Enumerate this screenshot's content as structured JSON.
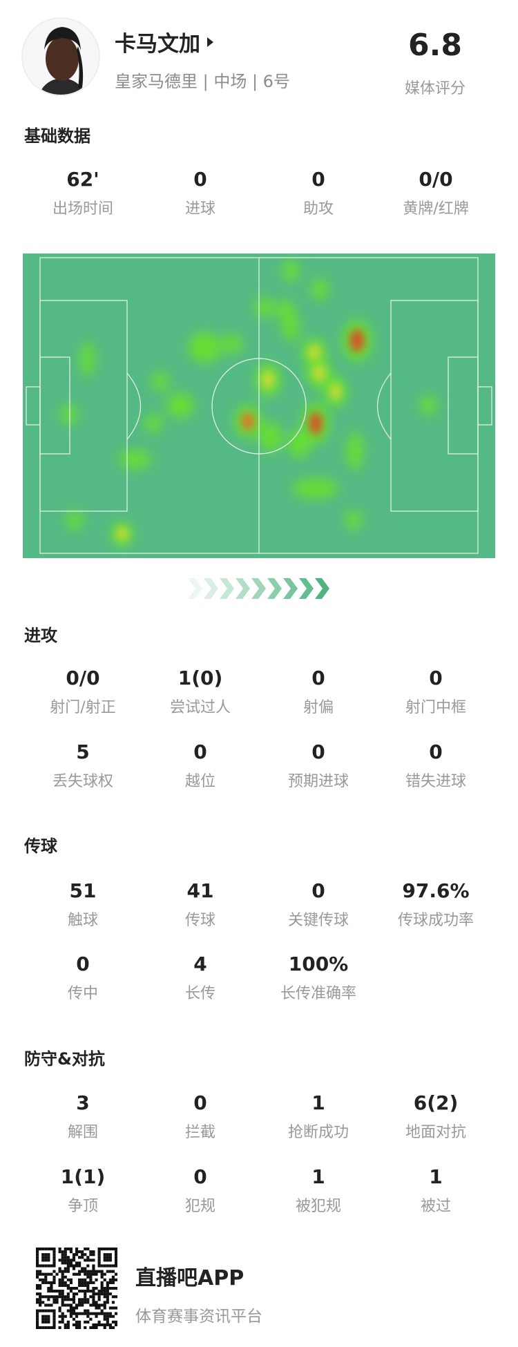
{
  "player": {
    "name": "卡马文加",
    "subtitle": "皇家马德里 | 中场 | 6号",
    "rating": "6.8",
    "rating_label": "媒体评分"
  },
  "sections": [
    {
      "title": "基础数据",
      "rows": [
        [
          {
            "value": "62'",
            "label": "出场时间"
          },
          {
            "value": "0",
            "label": "进球"
          },
          {
            "value": "0",
            "label": "助攻"
          },
          {
            "value": "0/0",
            "label": "黄牌/红牌"
          }
        ]
      ]
    },
    {
      "title": "进攻",
      "rows": [
        [
          {
            "value": "0/0",
            "label": "射门/射正"
          },
          {
            "value": "1(0)",
            "label": "尝试过人"
          },
          {
            "value": "0",
            "label": "射偏"
          },
          {
            "value": "0",
            "label": "射门中框"
          }
        ],
        [
          {
            "value": "5",
            "label": "丢失球权"
          },
          {
            "value": "0",
            "label": "越位"
          },
          {
            "value": "0",
            "label": "预期进球"
          },
          {
            "value": "0",
            "label": "错失进球"
          }
        ]
      ]
    },
    {
      "title": "传球",
      "rows": [
        [
          {
            "value": "51",
            "label": "触球"
          },
          {
            "value": "41",
            "label": "传球"
          },
          {
            "value": "0",
            "label": "关键传球"
          },
          {
            "value": "97.6%",
            "label": "传球成功率"
          }
        ],
        [
          {
            "value": "0",
            "label": "传中"
          },
          {
            "value": "4",
            "label": "长传"
          },
          {
            "value": "100%",
            "label": "长传准确率"
          }
        ]
      ]
    },
    {
      "title": "防守&对抗",
      "rows": [
        [
          {
            "value": "3",
            "label": "解围"
          },
          {
            "value": "0",
            "label": "拦截"
          },
          {
            "value": "1",
            "label": "抢断成功"
          },
          {
            "value": "6(2)",
            "label": "地面对抗"
          }
        ],
        [
          {
            "value": "1(1)",
            "label": "争顶"
          },
          {
            "value": "0",
            "label": "犯规"
          },
          {
            "value": "1",
            "label": "被犯规"
          },
          {
            "value": "1",
            "label": "被过"
          }
        ]
      ]
    }
  ],
  "heatmap": {
    "attack_direction": "right",
    "pitch_color": "#55b985",
    "line_color": "#e8f5ee"
  },
  "footer": {
    "app_name": "直播吧APP",
    "slogan": "体育赛事资讯平台"
  },
  "colors": {
    "text": "#222222",
    "muted": "#999999",
    "chevron": "#4db37e"
  }
}
